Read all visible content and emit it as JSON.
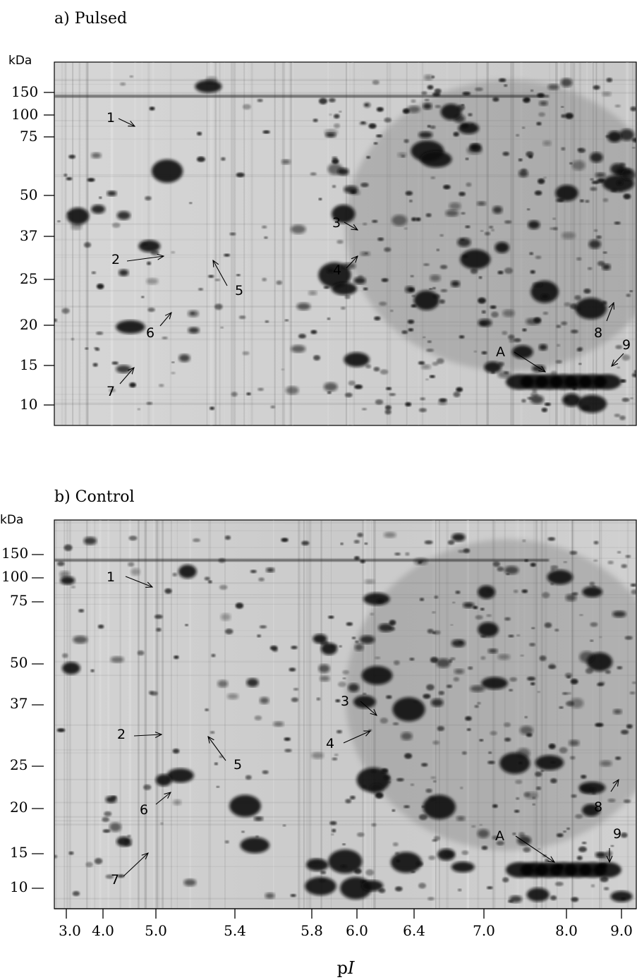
{
  "panels": [
    {
      "id": "pulsed",
      "title": "a) Pulsed",
      "unit": "kDa",
      "mw_ticks": [
        "150",
        "100",
        "75",
        "50",
        "37",
        "25",
        "20",
        "15",
        "10"
      ],
      "spot_labels": [
        "1",
        "2",
        "3",
        "4",
        "5",
        "6",
        "7",
        "8",
        "9",
        "A"
      ]
    },
    {
      "id": "control",
      "title": "b) Control",
      "unit": "kDa",
      "mw_ticks": [
        "150",
        "100",
        "75",
        "50",
        "37",
        "25",
        "20",
        "15",
        "10"
      ],
      "spot_labels": [
        "1",
        "2",
        "3",
        "4",
        "5",
        "6",
        "7",
        "8",
        "9",
        "A"
      ]
    }
  ],
  "pi_axis": {
    "ticks": [
      "3.0",
      "4.0",
      "5.0",
      "5.4",
      "5.8",
      "6.0",
      "6.4",
      "7.0",
      "8.0",
      "9.0"
    ],
    "label_prefix": "p",
    "label_italic": "I"
  }
}
